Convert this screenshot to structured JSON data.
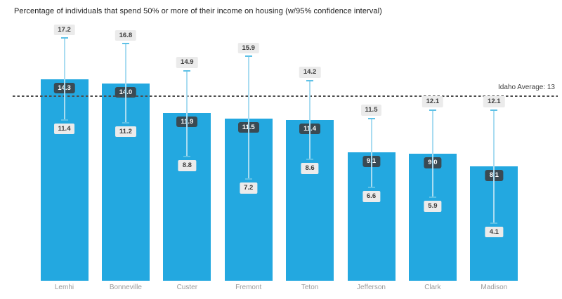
{
  "title": "Percentage of individuals that spend 50% or more of their income on housing (w/95% confidence interval)",
  "reference_line": {
    "label": "Idaho Average: 13",
    "value": 13
  },
  "colors": {
    "bar_fill": "#23a8e0",
    "value_badge_bg": "#3a4a53",
    "value_badge_text": "#ffffff",
    "ci_badge_bg": "#ebebeb",
    "ci_badge_text": "#3c3c3c",
    "error_line": "#a9dcf1",
    "error_cap": "#5ec1e6",
    "ref_line": "#4d4d4d",
    "ref_text": "#404040",
    "axis_text": "#9a9a9a",
    "title_text": "#212121"
  },
  "chart_data": {
    "type": "bar",
    "title": "Percentage of individuals that spend 50% or more of their income on housing (w/95% confidence interval)",
    "xlabel": "",
    "ylabel": "",
    "ylim": [
      0,
      18.4
    ],
    "grid": false,
    "legend_position": "none",
    "categories": [
      "Lemhi",
      "Bonneville",
      "Custer",
      "Fremont",
      "Teton",
      "Jefferson",
      "Clark",
      "Madison"
    ],
    "values": [
      14.3,
      14.0,
      11.9,
      11.5,
      11.4,
      9.1,
      9.0,
      8.1
    ],
    "values_display": [
      "14.3",
      "14.0",
      "11.9",
      "11.5",
      "11.4",
      "9.1",
      "9.0",
      "8.1"
    ],
    "ci_upper": [
      17.2,
      16.8,
      14.9,
      15.9,
      14.2,
      11.5,
      12.1,
      12.1
    ],
    "ci_upper_display": [
      "17.2",
      "16.8",
      "14.9",
      "15.9",
      "14.2",
      "11.5",
      "12.1",
      "12.1"
    ],
    "ci_lower": [
      11.4,
      11.2,
      8.8,
      7.2,
      8.6,
      6.6,
      5.9,
      4.1
    ],
    "ci_lower_display": [
      "11.4",
      "11.2",
      "8.8",
      "7.2",
      "8.6",
      "6.6",
      "5.9",
      "4.1"
    ],
    "reference_line": {
      "label": "Idaho Average: 13",
      "value": 13
    }
  }
}
